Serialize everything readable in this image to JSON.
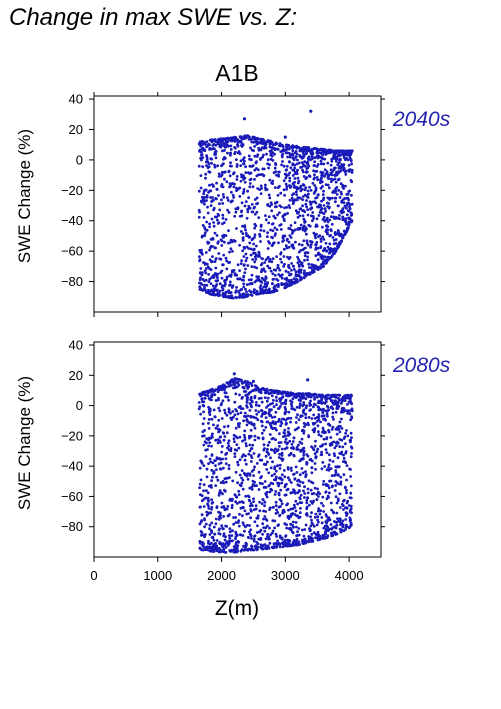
{
  "page_title": "Change in max SWE vs. Z:",
  "chart_data": {
    "type": "scatter",
    "title": "A1B",
    "xlabel": "Z(m)",
    "ylabel": "SWE Change (%)",
    "x_ticks": [
      0,
      1000,
      2000,
      3000,
      4000
    ],
    "y_ticks": [
      40,
      20,
      0,
      -20,
      -40,
      -60,
      -80
    ],
    "xlim": [
      0,
      4500
    ],
    "ylim": [
      -100,
      42
    ],
    "grid": false,
    "marker_color": "#1a1ab8",
    "label_color": "#2424b0",
    "panels": [
      {
        "label": "2040s",
        "x_range": [
          1650,
          4050
        ],
        "envelope": {
          "x": [
            1650,
            1800,
            2000,
            2200,
            2400,
            2600,
            2800,
            3000,
            3200,
            3400,
            3600,
            3800,
            4050
          ],
          "y_max": [
            12,
            13,
            14,
            15,
            16,
            14,
            12,
            10,
            9,
            8,
            7,
            6,
            6
          ],
          "y_min": [
            -85,
            -88,
            -90,
            -91,
            -90,
            -88,
            -87,
            -84,
            -80,
            -75,
            -70,
            -60,
            -40
          ]
        },
        "outliers": [
          [
            2360,
            27
          ],
          [
            3400,
            32
          ],
          [
            3000,
            15
          ]
        ]
      },
      {
        "label": "2080s",
        "x_range": [
          1650,
          4050
        ],
        "envelope": {
          "x": [
            1650,
            1800,
            2000,
            2200,
            2400,
            2600,
            2800,
            3000,
            3200,
            3400,
            3600,
            3800,
            4050
          ],
          "y_max": [
            8,
            10,
            13,
            18,
            16,
            12,
            10,
            9,
            8,
            8,
            7,
            7,
            7
          ],
          "y_min": [
            -95,
            -96,
            -97,
            -97,
            -96,
            -95,
            -94,
            -93,
            -92,
            -90,
            -88,
            -85,
            -80
          ]
        },
        "outliers": [
          [
            2200,
            21
          ],
          [
            2500,
            16
          ],
          [
            3350,
            17
          ]
        ]
      }
    ]
  }
}
